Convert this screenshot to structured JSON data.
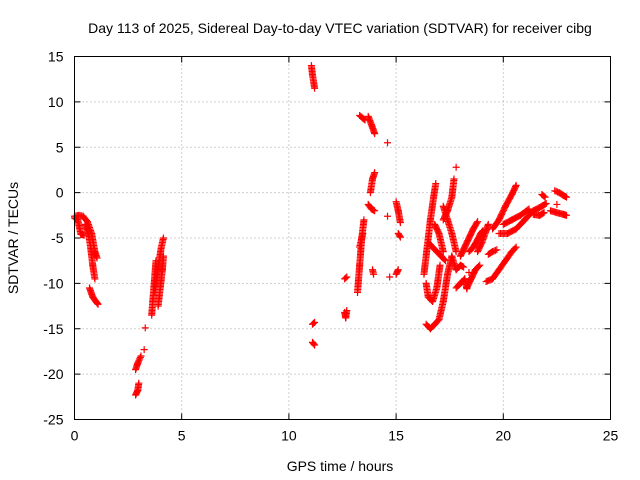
{
  "chart_data": {
    "type": "scatter",
    "title": "Day 113 of 2025, Sidereal Day-to-day VTEC variation (SDTVAR) for receiver cibg",
    "xlabel": "GPS time / hours",
    "ylabel": "SDTVAR / TECUs",
    "xlim": [
      0,
      25
    ],
    "ylim": [
      -25,
      15
    ],
    "xticks": [
      "0",
      "5",
      "10",
      "15",
      "20",
      "25"
    ],
    "yticks": [
      "15",
      "10",
      "5",
      "0",
      "-5",
      "-10",
      "-15",
      "-20",
      "-25"
    ],
    "grid": true,
    "marker": "+",
    "series": [
      {
        "name": "SDTVAR",
        "color": "#ff0000",
        "segments": [
          [
            [
              0.0,
              -2.8
            ],
            [
              0.15,
              -3.0
            ],
            [
              0.3,
              -4.6
            ],
            [
              0.45,
              -4.7
            ]
          ],
          [
            [
              0.0,
              -2.6
            ],
            [
              0.2,
              -2.5
            ],
            [
              0.4,
              -2.6
            ],
            [
              0.6,
              -3.2
            ],
            [
              0.8,
              -4.5
            ],
            [
              0.95,
              -6.5
            ],
            [
              1.05,
              -7.2
            ]
          ],
          [
            [
              0.5,
              -3.5
            ],
            [
              0.65,
              -4.5
            ],
            [
              0.75,
              -6.0
            ],
            [
              0.85,
              -8.0
            ],
            [
              0.95,
              -9.5
            ]
          ],
          [
            [
              0.7,
              -10.5
            ],
            [
              0.85,
              -11.5
            ],
            [
              1.0,
              -12.0
            ],
            [
              1.1,
              -12.3
            ]
          ],
          [
            [
              2.85,
              -22.3
            ],
            [
              2.95,
              -21.8
            ],
            [
              3.0,
              -21.0
            ]
          ],
          [
            [
              2.85,
              -19.5
            ],
            [
              2.95,
              -18.8
            ],
            [
              3.1,
              -18.0
            ]
          ],
          [
            [
              3.25,
              -17.3
            ]
          ],
          [
            [
              3.3,
              -14.9
            ]
          ],
          [
            [
              3.6,
              -13.5
            ],
            [
              3.65,
              -12.0
            ],
            [
              3.7,
              -10.5
            ],
            [
              3.75,
              -9.0
            ],
            [
              3.8,
              -7.5
            ]
          ],
          [
            [
              3.75,
              -11.0
            ],
            [
              3.85,
              -9.0
            ],
            [
              3.95,
              -7.5
            ],
            [
              4.05,
              -6.0
            ],
            [
              4.15,
              -5.0
            ]
          ],
          [
            [
              3.9,
              -12.5
            ],
            [
              4.0,
              -10.5
            ],
            [
              4.1,
              -8.5
            ],
            [
              4.15,
              -7.0
            ]
          ],
          [
            [
              11.05,
              14.0
            ],
            [
              11.1,
              13.0
            ],
            [
              11.2,
              11.5
            ]
          ],
          [
            [
              11.1,
              -14.5
            ],
            [
              11.2,
              -14.3
            ]
          ],
          [
            [
              11.1,
              -16.5
            ],
            [
              11.2,
              -16.8
            ]
          ],
          [
            [
              12.6,
              -13.2
            ],
            [
              12.65,
              -13.8
            ],
            [
              12.7,
              -13.0
            ]
          ],
          [
            [
              12.6,
              -9.5
            ],
            [
              12.7,
              -9.3
            ]
          ],
          [
            [
              13.2,
              -11.0
            ],
            [
              13.3,
              -8.0
            ],
            [
              13.4,
              -5.0
            ],
            [
              13.5,
              -3.0
            ]
          ],
          [
            [
              13.3,
              -6.0
            ],
            [
              13.4,
              -5.0
            ],
            [
              13.45,
              -4.5
            ]
          ],
          [
            [
              13.3,
              8.5
            ],
            [
              13.45,
              8.2
            ],
            [
              13.55,
              8.0
            ]
          ],
          [
            [
              13.7,
              8.4
            ],
            [
              13.85,
              7.5
            ],
            [
              14.0,
              6.5
            ]
          ],
          [
            [
              13.8,
              0.0
            ],
            [
              13.9,
              1.5
            ],
            [
              14.0,
              2.2
            ]
          ],
          [
            [
              13.7,
              -1.3
            ],
            [
              13.85,
              -1.8
            ],
            [
              14.0,
              -2.0
            ]
          ],
          [
            [
              13.9,
              -8.5
            ],
            [
              13.95,
              -9.0
            ]
          ],
          [
            [
              14.6,
              5.5
            ]
          ],
          [
            [
              14.6,
              -2.6
            ]
          ],
          [
            [
              14.7,
              -9.3
            ]
          ],
          [
            [
              15.0,
              -9.0
            ],
            [
              15.1,
              -8.5
            ]
          ],
          [
            [
              15.0,
              -1.0
            ],
            [
              15.1,
              -2.0
            ],
            [
              15.2,
              -3.3
            ]
          ],
          [
            [
              15.1,
              -4.5
            ],
            [
              15.2,
              -4.9
            ]
          ],
          [
            [
              16.3,
              -9.0
            ],
            [
              16.45,
              -6.0
            ],
            [
              16.6,
              -3.0
            ],
            [
              16.75,
              -0.5
            ],
            [
              16.85,
              1.0
            ]
          ],
          [
            [
              16.4,
              -10.0
            ],
            [
              16.5,
              -11.5
            ],
            [
              16.7,
              -12.0
            ],
            [
              16.9,
              -10.5
            ],
            [
              17.05,
              -8.0
            ]
          ],
          [
            [
              16.4,
              -14.5
            ],
            [
              16.6,
              -15.0
            ],
            [
              16.8,
              -14.5
            ],
            [
              17.0,
              -14.0
            ],
            [
              17.2,
              -12.0
            ],
            [
              17.4,
              -9.0
            ],
            [
              17.6,
              -7.0
            ]
          ],
          [
            [
              16.5,
              -5.5
            ],
            [
              16.7,
              -6.0
            ],
            [
              16.9,
              -6.5
            ],
            [
              17.1,
              -7.0
            ],
            [
              17.3,
              -7.5
            ]
          ],
          [
            [
              16.8,
              -3.5
            ],
            [
              17.0,
              -4.5
            ],
            [
              17.2,
              -6.5
            ]
          ],
          [
            [
              17.2,
              -3.0
            ],
            [
              17.4,
              -2.0
            ],
            [
              17.6,
              -0.5
            ],
            [
              17.7,
              1.5
            ]
          ],
          [
            [
              17.2,
              -1.5
            ],
            [
              17.4,
              -3.0
            ],
            [
              17.6,
              -4.5
            ],
            [
              17.8,
              -6.5
            ]
          ],
          [
            [
              17.6,
              -7.0
            ],
            [
              17.8,
              -8.5
            ],
            [
              18.0,
              -8.0
            ],
            [
              18.15,
              -8.2
            ]
          ],
          [
            [
              17.8,
              2.8
            ]
          ],
          [
            [
              17.8,
              -10.5
            ],
            [
              18.0,
              -10.0
            ],
            [
              18.2,
              -9.5
            ],
            [
              18.3,
              -10.6
            ]
          ],
          [
            [
              18.0,
              -7.0
            ],
            [
              18.2,
              -6.0
            ],
            [
              18.4,
              -5.0
            ],
            [
              18.6,
              -4.0
            ],
            [
              18.8,
              -3.2
            ]
          ],
          [
            [
              18.4,
              -6.5
            ],
            [
              18.6,
              -6.0
            ],
            [
              18.8,
              -5.2
            ],
            [
              18.95,
              -4.5
            ],
            [
              19.05,
              -4.2
            ]
          ],
          [
            [
              18.3,
              -10.5
            ],
            [
              18.5,
              -9.5
            ],
            [
              18.7,
              -8.5
            ],
            [
              18.9,
              -8.0
            ]
          ],
          [
            [
              18.4,
              -8.8
            ]
          ],
          [
            [
              18.8,
              -6.5
            ],
            [
              19.0,
              -5.5
            ],
            [
              19.2,
              -4.2
            ],
            [
              19.3,
              -3.5
            ]
          ],
          [
            [
              19.2,
              -9.8
            ],
            [
              19.5,
              -9.5
            ],
            [
              19.8,
              -8.5
            ],
            [
              20.1,
              -7.5
            ],
            [
              20.4,
              -6.5
            ],
            [
              20.6,
              -6.0
            ]
          ],
          [
            [
              19.3,
              -6.8
            ],
            [
              19.5,
              -6.5
            ],
            [
              19.7,
              -6.3
            ]
          ],
          [
            [
              19.5,
              -4.0
            ],
            [
              19.8,
              -3.0
            ],
            [
              20.1,
              -1.5
            ],
            [
              20.4,
              -0.2
            ],
            [
              20.6,
              0.8
            ]
          ],
          [
            [
              19.8,
              -4.5
            ],
            [
              20.2,
              -4.5
            ],
            [
              20.6,
              -4.0
            ],
            [
              21.0,
              -3.0
            ],
            [
              21.4,
              -2.0
            ],
            [
              21.8,
              -1.5
            ],
            [
              22.0,
              -1.2
            ]
          ],
          [
            [
              20.0,
              -3.5
            ],
            [
              20.4,
              -3.0
            ],
            [
              20.8,
              -2.5
            ],
            [
              21.2,
              -1.8
            ]
          ],
          [
            [
              21.4,
              -2.4
            ],
            [
              21.7,
              -2.5
            ],
            [
              21.9,
              -2.2
            ]
          ],
          [
            [
              21.8,
              -0.2
            ],
            [
              21.95,
              -0.5
            ]
          ],
          [
            [
              22.2,
              -2.0
            ],
            [
              22.5,
              -2.2
            ],
            [
              22.8,
              -2.4
            ],
            [
              22.95,
              -2.5
            ]
          ],
          [
            [
              22.4,
              0.2
            ],
            [
              22.6,
              0.0
            ],
            [
              22.8,
              -0.3
            ],
            [
              22.95,
              -0.5
            ]
          ],
          [
            [
              22.5,
              -1.3
            ]
          ]
        ]
      }
    ]
  }
}
